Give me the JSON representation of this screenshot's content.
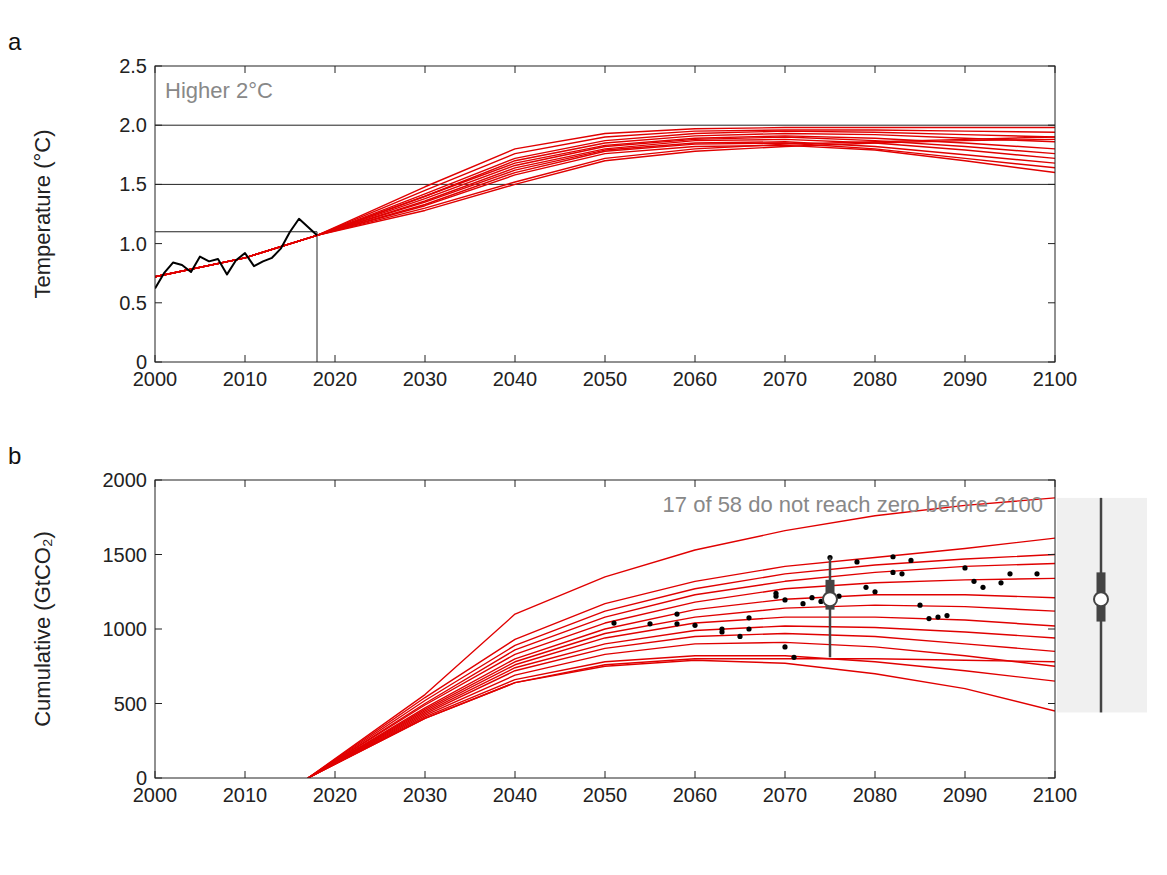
{
  "chart_data": [
    {
      "type": "line",
      "panel_label": "a",
      "annotation": "Higher 2°C",
      "y_label": "Temperature (°C)",
      "xlim": [
        2000,
        2100
      ],
      "xticks": [
        2000,
        2010,
        2020,
        2030,
        2040,
        2050,
        2060,
        2070,
        2080,
        2090,
        2100
      ],
      "ylim": [
        0,
        2.5
      ],
      "yticks": [
        0,
        0.5,
        {
          "value": 1,
          "label": "1.0"
        },
        1.5,
        {
          "value": 2,
          "label": "2.0"
        },
        2.5
      ],
      "hlines": [
        2.0,
        1.5
      ],
      "reference_point": {
        "x": 2018,
        "y": 1.1
      },
      "series": [
        {
          "color": "#e00000",
          "x": [
            2000,
            2010,
            2018,
            2030,
            2040,
            2050,
            2060,
            2070,
            2080,
            2090,
            2100
          ],
          "values": [
            0.72,
            0.88,
            1.07,
            1.48,
            1.8,
            1.93,
            1.97,
            1.98,
            1.98,
            1.98,
            1.98
          ]
        },
        {
          "color": "#e00000",
          "x": [
            2000,
            2010,
            2018,
            2030,
            2040,
            2050,
            2060,
            2070,
            2080,
            2090,
            2100
          ],
          "values": [
            0.72,
            0.88,
            1.07,
            1.45,
            1.76,
            1.9,
            1.95,
            1.96,
            1.96,
            1.95,
            1.94
          ]
        },
        {
          "color": "#e00000",
          "x": [
            2000,
            2010,
            2018,
            2030,
            2040,
            2050,
            2060,
            2070,
            2080,
            2090,
            2100
          ],
          "values": [
            0.72,
            0.88,
            1.07,
            1.42,
            1.72,
            1.87,
            1.93,
            1.95,
            1.94,
            1.92,
            1.9
          ]
        },
        {
          "color": "#e00000",
          "x": [
            2000,
            2010,
            2018,
            2030,
            2040,
            2050,
            2060,
            2070,
            2080,
            2090,
            2100
          ],
          "values": [
            0.72,
            0.88,
            1.07,
            1.4,
            1.7,
            1.85,
            1.91,
            1.93,
            1.92,
            1.89,
            1.86
          ]
        },
        {
          "color": "#e00000",
          "x": [
            2000,
            2010,
            2018,
            2030,
            2040,
            2050,
            2060,
            2070,
            2080,
            2090,
            2100
          ],
          "values": [
            0.72,
            0.88,
            1.07,
            1.4,
            1.68,
            1.83,
            1.89,
            1.91,
            1.89,
            1.85,
            1.8
          ]
        },
        {
          "color": "#e00000",
          "x": [
            2000,
            2010,
            2018,
            2030,
            2040,
            2050,
            2060,
            2070,
            2080,
            2090,
            2100
          ],
          "values": [
            0.72,
            0.88,
            1.07,
            1.38,
            1.66,
            1.82,
            1.88,
            1.9,
            1.87,
            1.82,
            1.76
          ]
        },
        {
          "color": "#e00000",
          "x": [
            2000,
            2010,
            2018,
            2030,
            2040,
            2050,
            2060,
            2070,
            2080,
            2090,
            2100
          ],
          "values": [
            0.72,
            0.88,
            1.07,
            1.36,
            1.64,
            1.8,
            1.87,
            1.88,
            1.85,
            1.79,
            1.72
          ]
        },
        {
          "color": "#e00000",
          "x": [
            2000,
            2010,
            2018,
            2030,
            2040,
            2050,
            2060,
            2070,
            2080,
            2090,
            2100
          ],
          "values": [
            0.72,
            0.88,
            1.07,
            1.35,
            1.62,
            1.79,
            1.85,
            1.86,
            1.82,
            1.75,
            1.68
          ]
        },
        {
          "color": "#e00000",
          "x": [
            2000,
            2010,
            2018,
            2030,
            2040,
            2050,
            2060,
            2070,
            2080,
            2090,
            2100
          ],
          "values": [
            0.72,
            0.88,
            1.07,
            1.33,
            1.6,
            1.78,
            1.84,
            1.85,
            1.8,
            1.72,
            1.64
          ]
        },
        {
          "color": "#e00000",
          "x": [
            2000,
            2010,
            2018,
            2030,
            2040,
            2050,
            2060,
            2070,
            2080,
            2090,
            2100
          ],
          "values": [
            0.72,
            0.88,
            1.07,
            1.32,
            1.58,
            1.76,
            1.82,
            1.83,
            1.79,
            1.7,
            1.6
          ]
        },
        {
          "color": "#e00000",
          "x": [
            2000,
            2010,
            2018,
            2030,
            2040,
            2050,
            2060,
            2070,
            2080,
            2090,
            2100
          ],
          "values": [
            0.72,
            0.88,
            1.07,
            1.3,
            1.52,
            1.72,
            1.8,
            1.84,
            1.86,
            1.88,
            1.9
          ]
        },
        {
          "color": "#e00000",
          "x": [
            2000,
            2010,
            2018,
            2030,
            2040,
            2050,
            2060,
            2070,
            2080,
            2090,
            2100
          ],
          "values": [
            0.72,
            0.88,
            1.07,
            1.28,
            1.5,
            1.7,
            1.78,
            1.82,
            1.85,
            1.87,
            1.88
          ]
        },
        {
          "color": "#000000",
          "x": [
            2000,
            2001,
            2002,
            2003,
            2004,
            2005,
            2006,
            2007,
            2008,
            2009,
            2010,
            2011,
            2012,
            2013,
            2014,
            2015,
            2016,
            2017,
            2018
          ],
          "values": [
            0.62,
            0.75,
            0.84,
            0.82,
            0.76,
            0.89,
            0.85,
            0.87,
            0.74,
            0.86,
            0.92,
            0.81,
            0.85,
            0.88,
            0.96,
            1.1,
            1.21,
            1.14,
            1.07
          ]
        }
      ]
    },
    {
      "type": "line",
      "panel_label": "b",
      "annotation": "17 of 58 do not reach zero before 2100",
      "y_label": "Cumulative (GtCO₂)",
      "xlim": [
        2000,
        2100
      ],
      "xticks": [
        2000,
        2010,
        2020,
        2030,
        2040,
        2050,
        2060,
        2070,
        2080,
        2090,
        2100
      ],
      "ylim": [
        0,
        2000
      ],
      "yticks": [
        0,
        500,
        1000,
        1500,
        2000
      ],
      "series": [
        {
          "color": "#e00000",
          "x": [
            2017,
            2030,
            2040,
            2050,
            2060,
            2070,
            2080,
            2090,
            2100
          ],
          "values": [
            0,
            560,
            1100,
            1350,
            1530,
            1660,
            1760,
            1830,
            1880
          ]
        },
        {
          "color": "#e00000",
          "x": [
            2017,
            2030,
            2040,
            2050,
            2060,
            2070,
            2080,
            2090,
            2100
          ],
          "values": [
            0,
            540,
            930,
            1170,
            1320,
            1420,
            1480,
            1540,
            1610
          ]
        },
        {
          "color": "#e00000",
          "x": [
            2017,
            2030,
            2040,
            2050,
            2060,
            2070,
            2080,
            2090,
            2100
          ],
          "values": [
            0,
            520,
            890,
            1120,
            1270,
            1370,
            1430,
            1470,
            1500
          ]
        },
        {
          "color": "#e00000",
          "x": [
            2017,
            2030,
            2040,
            2050,
            2060,
            2070,
            2080,
            2090,
            2100
          ],
          "values": [
            0,
            500,
            860,
            1080,
            1230,
            1320,
            1380,
            1420,
            1440
          ]
        },
        {
          "color": "#e00000",
          "x": [
            2017,
            2030,
            2040,
            2050,
            2060,
            2070,
            2080,
            2090,
            2100
          ],
          "values": [
            0,
            490,
            830,
            1040,
            1180,
            1270,
            1310,
            1330,
            1340
          ]
        },
        {
          "color": "#e00000",
          "x": [
            2017,
            2030,
            2040,
            2050,
            2060,
            2070,
            2080,
            2090,
            2100
          ],
          "values": [
            0,
            470,
            800,
            1000,
            1130,
            1200,
            1230,
            1230,
            1210
          ]
        },
        {
          "color": "#e00000",
          "x": [
            2017,
            2030,
            2040,
            2050,
            2060,
            2070,
            2080,
            2090,
            2100
          ],
          "values": [
            0,
            460,
            780,
            970,
            1080,
            1140,
            1160,
            1150,
            1120
          ]
        },
        {
          "color": "#e00000",
          "x": [
            2017,
            2030,
            2040,
            2050,
            2060,
            2070,
            2080,
            2090,
            2100
          ],
          "values": [
            0,
            450,
            760,
            940,
            1040,
            1080,
            1080,
            1060,
            1020
          ]
        },
        {
          "color": "#e00000",
          "x": [
            2017,
            2030,
            2040,
            2050,
            2060,
            2070,
            2080,
            2090,
            2100
          ],
          "values": [
            0,
            440,
            740,
            900,
            990,
            1020,
            1010,
            980,
            940
          ]
        },
        {
          "color": "#e00000",
          "x": [
            2017,
            2030,
            2040,
            2050,
            2060,
            2070,
            2080,
            2090,
            2100
          ],
          "values": [
            0,
            430,
            720,
            870,
            950,
            970,
            950,
            900,
            850
          ]
        },
        {
          "color": "#e00000",
          "x": [
            2017,
            2030,
            2040,
            2050,
            2060,
            2070,
            2080,
            2090,
            2100
          ],
          "values": [
            0,
            420,
            690,
            830,
            900,
            910,
            880,
            820,
            750
          ]
        },
        {
          "color": "#e00000",
          "x": [
            2017,
            2030,
            2040,
            2050,
            2060,
            2070,
            2080,
            2090,
            2100
          ],
          "values": [
            0,
            410,
            660,
            780,
            820,
            820,
            780,
            720,
            650
          ]
        },
        {
          "color": "#e00000",
          "x": [
            2017,
            2030,
            2040,
            2050,
            2060,
            2070,
            2080,
            2090,
            2100
          ],
          "values": [
            0,
            400,
            640,
            760,
            800,
            800,
            800,
            790,
            780
          ]
        },
        {
          "color": "#e00000",
          "x": [
            2017,
            2030,
            2040,
            2050,
            2060,
            2070,
            2080,
            2090,
            2100
          ],
          "values": [
            0,
            400,
            640,
            750,
            790,
            770,
            700,
            600,
            450
          ]
        }
      ],
      "points": {
        "color": "#000000",
        "x": [
          2051,
          2055,
          2058,
          2058,
          2060,
          2063,
          2063,
          2065,
          2066,
          2066,
          2069,
          2069,
          2070,
          2070,
          2071,
          2072,
          2073,
          2074,
          2075,
          2076,
          2078,
          2079,
          2080,
          2082,
          2082,
          2083,
          2084,
          2085,
          2086,
          2087,
          2088,
          2090,
          2091,
          2092,
          2094,
          2095,
          2098
        ],
        "y": [
          1040,
          1035,
          1100,
          1035,
          1025,
          1000,
          980,
          950,
          1075,
          1000,
          1240,
          1220,
          1195,
          880,
          810,
          1170,
          1210,
          1185,
          1480,
          1220,
          1450,
          1280,
          1250,
          1485,
          1380,
          1370,
          1460,
          1160,
          1070,
          1080,
          1090,
          1410,
          1320,
          1280,
          1310,
          1370,
          1370
        ]
      },
      "boxplot": {
        "x": 2075,
        "min": 810,
        "q1": 1130,
        "median": 1200,
        "q3": 1330,
        "max": 1480
      },
      "side_boxplot": {
        "min": 440,
        "q1": 1050,
        "median": 1200,
        "q3": 1380,
        "max": 1880
      }
    }
  ]
}
